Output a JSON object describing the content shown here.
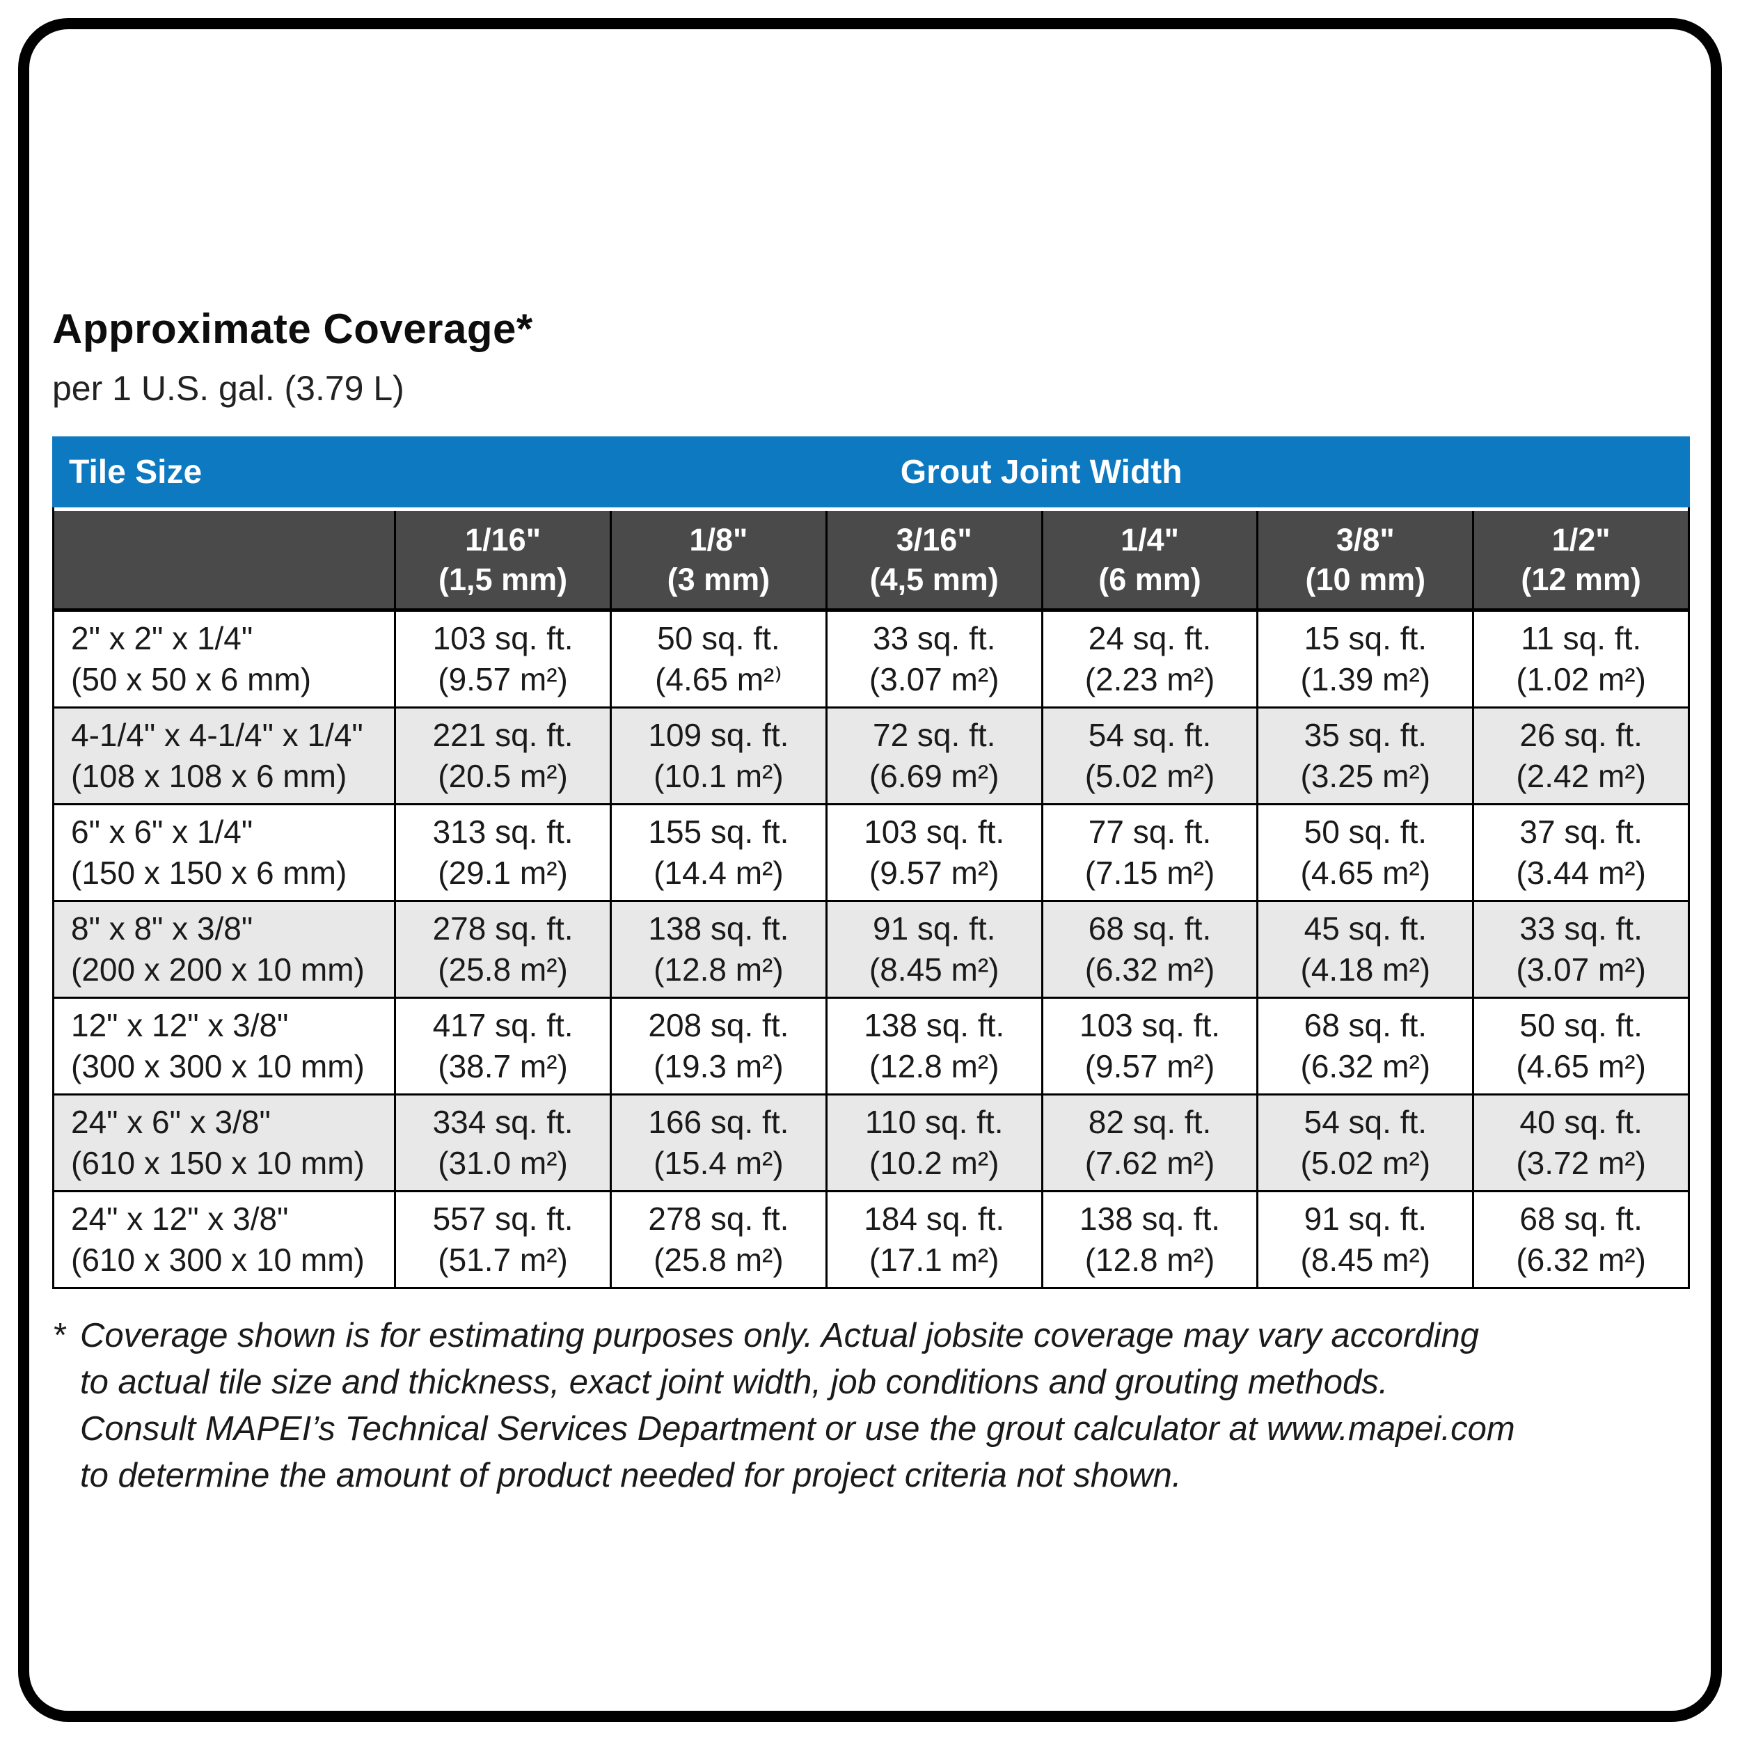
{
  "page": {
    "title": "Approximate Coverage*",
    "subtitle": "per 1 U.S. gal. (3.79 L)"
  },
  "table": {
    "corner_header": "Tile Size",
    "group_header": "Grout Joint Width",
    "columns": [
      {
        "size": "1/16\"",
        "mm": "(1,5 mm)"
      },
      {
        "size": "1/8\"",
        "mm": "(3 mm)"
      },
      {
        "size": "3/16\"",
        "mm": "(4,5 mm)"
      },
      {
        "size": "1/4\"",
        "mm": "(6 mm)"
      },
      {
        "size": "3/8\"",
        "mm": "(10 mm)"
      },
      {
        "size": "1/2\"",
        "mm": "(12 mm)"
      }
    ],
    "rows": [
      {
        "tile": [
          "2\" x 2\" x 1/4\"",
          "(50 x 50 x 6 mm)"
        ],
        "cells": [
          [
            "103 sq. ft.",
            "(9.57 m²)"
          ],
          [
            "50 sq. ft.",
            "(4.65 m²⁾"
          ],
          [
            "33 sq. ft.",
            "(3.07 m²)"
          ],
          [
            "24 sq. ft.",
            "(2.23 m²)"
          ],
          [
            "15 sq. ft.",
            "(1.39 m²)"
          ],
          [
            "11 sq. ft.",
            "(1.02 m²)"
          ]
        ]
      },
      {
        "tile": [
          "4-1/4\" x 4-1/4\" x 1/4\"",
          "(108 x 108 x 6 mm)"
        ],
        "cells": [
          [
            "221 sq. ft.",
            "(20.5 m²)"
          ],
          [
            "109 sq. ft.",
            "(10.1 m²)"
          ],
          [
            "72 sq. ft.",
            "(6.69 m²)"
          ],
          [
            "54 sq. ft.",
            "(5.02 m²)"
          ],
          [
            "35 sq. ft.",
            "(3.25 m²)"
          ],
          [
            "26 sq. ft.",
            "(2.42 m²)"
          ]
        ]
      },
      {
        "tile": [
          "6\" x 6\" x 1/4\"",
          "(150 x 150 x 6 mm)"
        ],
        "cells": [
          [
            "313 sq. ft.",
            "(29.1 m²)"
          ],
          [
            "155 sq. ft.",
            "(14.4 m²)"
          ],
          [
            "103 sq. ft.",
            "(9.57 m²)"
          ],
          [
            "77 sq. ft.",
            "(7.15 m²)"
          ],
          [
            "50 sq. ft.",
            "(4.65 m²)"
          ],
          [
            "37 sq. ft.",
            "(3.44 m²)"
          ]
        ]
      },
      {
        "tile": [
          "8\" x 8\" x 3/8\"",
          "(200 x 200 x 10 mm)"
        ],
        "cells": [
          [
            "278 sq. ft.",
            "(25.8 m²)"
          ],
          [
            "138 sq. ft.",
            "(12.8 m²)"
          ],
          [
            "91 sq. ft.",
            "(8.45 m²)"
          ],
          [
            "68 sq. ft.",
            "(6.32 m²)"
          ],
          [
            "45 sq. ft.",
            "(4.18 m²)"
          ],
          [
            "33 sq. ft.",
            "(3.07 m²)"
          ]
        ]
      },
      {
        "tile": [
          "12\" x 12\" x 3/8\"",
          "(300 x 300 x 10 mm)"
        ],
        "cells": [
          [
            "417 sq. ft.",
            "(38.7 m²)"
          ],
          [
            "208 sq. ft.",
            "(19.3 m²)"
          ],
          [
            "138 sq. ft.",
            "(12.8 m²)"
          ],
          [
            "103 sq. ft.",
            "(9.57 m²)"
          ],
          [
            "68 sq. ft.",
            "(6.32 m²)"
          ],
          [
            "50 sq. ft.",
            "(4.65 m²)"
          ]
        ]
      },
      {
        "tile": [
          "24\" x 6\" x 3/8\"",
          "(610 x 150 x 10 mm)"
        ],
        "cells": [
          [
            "334 sq. ft.",
            "(31.0 m²)"
          ],
          [
            "166 sq. ft.",
            "(15.4 m²)"
          ],
          [
            "110 sq. ft.",
            "(10.2 m²)"
          ],
          [
            "82 sq. ft.",
            "(7.62 m²)"
          ],
          [
            "54 sq. ft.",
            "(5.02 m²)"
          ],
          [
            "40 sq. ft.",
            "(3.72 m²)"
          ]
        ]
      },
      {
        "tile": [
          "24\" x 12\" x 3/8\"",
          "(610 x 300 x 10 mm)"
        ],
        "cells": [
          [
            "557 sq. ft.",
            "(51.7 m²)"
          ],
          [
            "278 sq. ft.",
            "(25.8 m²)"
          ],
          [
            "184 sq. ft.",
            "(17.1 m²)"
          ],
          [
            "138 sq. ft.",
            "(12.8 m²)"
          ],
          [
            "91 sq. ft.",
            "(8.45 m²)"
          ],
          [
            "68 sq. ft.",
            "(6.32 m²)"
          ]
        ]
      }
    ]
  },
  "footnote": {
    "marker": "*",
    "lines": [
      "Coverage shown is for estimating purposes only. Actual jobsite coverage may vary according",
      "to actual tile size and thickness, exact joint width, job conditions and grouting methods.",
      "Consult MAPEI’s Technical Services Department or use the grout calculator at www.mapei.com",
      "to determine the amount of product needed for project criteria not shown."
    ]
  },
  "colors": {
    "accent_blue": "#0c79c1",
    "header_gray": "#4a4a4b",
    "row_alt": "#e8e8e9",
    "border_black": "#000000"
  }
}
